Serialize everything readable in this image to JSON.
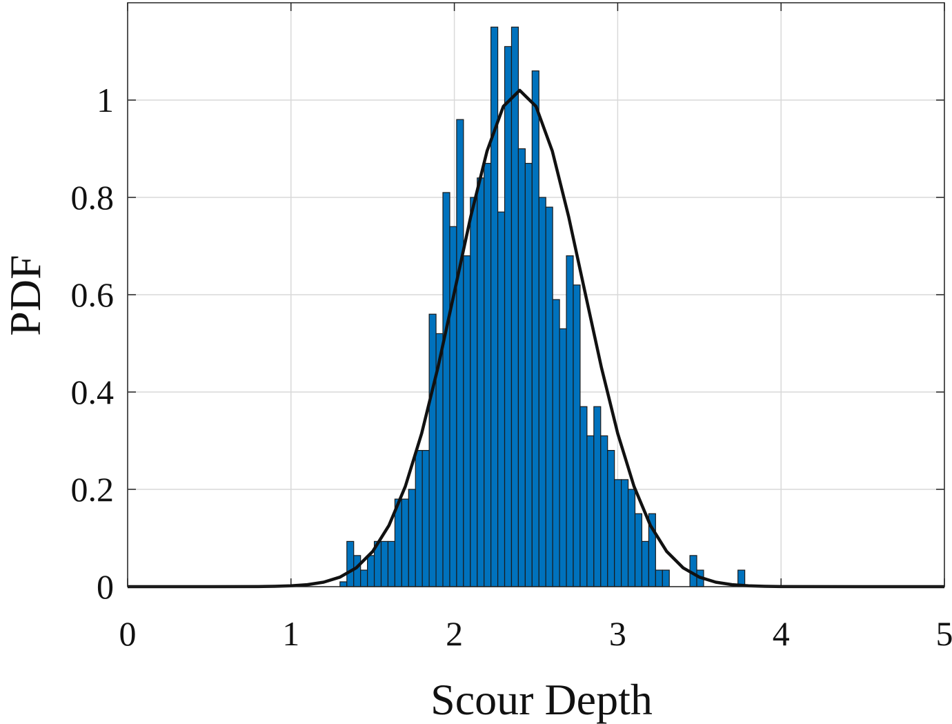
{
  "chart_data": {
    "type": "histogram",
    "xlabel": "Scour Depth",
    "ylabel": "PDF",
    "xlim": [
      0,
      5
    ],
    "ylim": [
      0,
      1.2
    ],
    "xticks": [
      0,
      1,
      2,
      3,
      4,
      5
    ],
    "yticks": [
      0,
      0.2,
      0.4,
      0.6,
      0.8,
      1
    ],
    "grid": true,
    "color": "#0072bd",
    "bins": [
      1.3,
      1.342,
      1.384,
      1.426,
      1.468,
      1.51,
      1.552,
      1.594,
      1.636,
      1.678,
      1.72,
      1.762,
      1.804,
      1.846,
      1.888,
      1.93,
      1.972,
      2.014,
      2.056,
      2.098,
      2.14,
      2.182,
      2.224,
      2.266,
      2.308,
      2.35,
      2.392,
      2.434,
      2.476,
      2.518,
      2.56,
      2.602,
      2.644,
      2.686,
      2.728,
      2.77,
      2.812,
      2.854,
      2.896,
      2.938,
      2.98,
      3.022,
      3.064,
      3.106,
      3.148,
      3.19,
      3.232,
      3.274,
      3.316,
      3.358,
      3.4,
      3.442,
      3.484,
      3.526,
      3.568,
      3.61,
      3.652,
      3.694,
      3.736,
      3.778
    ],
    "values": [
      0.01,
      0.093,
      0.064,
      0.034,
      0.064,
      0.093,
      0.093,
      0.093,
      0.18,
      0.18,
      0.2,
      0.28,
      0.28,
      0.56,
      0.52,
      0.81,
      0.74,
      0.96,
      0.68,
      0.8,
      0.84,
      0.87,
      1.15,
      0.77,
      1.11,
      1.15,
      0.9,
      0.87,
      1.06,
      0.8,
      0.78,
      0.59,
      0.53,
      0.68,
      0.62,
      0.37,
      0.31,
      0.37,
      0.31,
      0.28,
      0.22,
      0.22,
      0.2,
      0.15,
      0.093,
      0.15,
      0.034,
      0.034,
      0,
      0,
      0,
      0.064,
      0.034,
      0,
      0,
      0,
      0,
      0,
      0.034
    ],
    "curve": {
      "type": "line",
      "color": "#111111",
      "x": [
        0,
        0.5,
        0.8,
        0.9,
        1,
        1.1,
        1.2,
        1.3,
        1.4,
        1.5,
        1.6,
        1.7,
        1.8,
        1.9,
        2,
        2.1,
        2.2,
        2.3,
        2.4,
        2.5,
        2.6,
        2.7,
        2.8,
        2.9,
        3,
        3.1,
        3.2,
        3.3,
        3.4,
        3.5,
        3.6,
        3.7,
        3.8,
        3.9,
        4,
        4.5,
        5
      ],
      "values": [
        0,
        0,
        0.0002,
        0.0007,
        0.0017,
        0.0041,
        0.0092,
        0.0196,
        0.0388,
        0.0723,
        0.126,
        0.206,
        0.315,
        0.451,
        0.605,
        0.76,
        0.895,
        0.987,
        1.02,
        0.987,
        0.895,
        0.76,
        0.605,
        0.451,
        0.315,
        0.206,
        0.126,
        0.0723,
        0.0388,
        0.0196,
        0.0092,
        0.0041,
        0.0017,
        0.0007,
        0.0002,
        0,
        0
      ]
    }
  }
}
